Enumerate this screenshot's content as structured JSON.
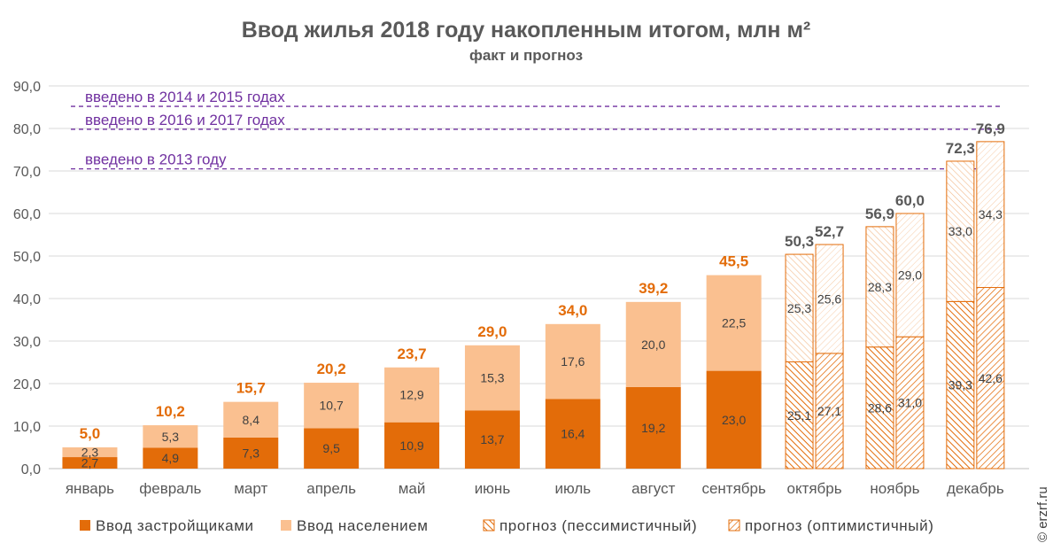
{
  "chart_data": {
    "type": "bar",
    "stacked": true,
    "title": "Ввод жилья 2018 году накопленным итогом, млн м²",
    "subtitle": "факт и прогноз",
    "categories": [
      "январь",
      "февраль",
      "март",
      "апрель",
      "май",
      "июнь",
      "июль",
      "август",
      "сентябрь",
      "октябрь",
      "ноябрь",
      "декабрь"
    ],
    "ylim": [
      0,
      90
    ],
    "yticks": [
      "0,0",
      "10,0",
      "20,0",
      "30,0",
      "40,0",
      "50,0",
      "60,0",
      "70,0",
      "80,0",
      "90,0"
    ],
    "grid": true,
    "actual": {
      "series": [
        {
          "name": "Ввод застройщиками",
          "color": "#e36c09",
          "values": [
            2.7,
            4.9,
            7.3,
            9.5,
            10.9,
            13.7,
            16.4,
            19.2,
            23.0
          ],
          "labels": [
            "2,7",
            "4,9",
            "7,3",
            "9,5",
            "10,9",
            "13,7",
            "16,4",
            "19,2",
            "23,0"
          ]
        },
        {
          "name": "Ввод населением",
          "color": "#fac090",
          "values": [
            2.3,
            5.3,
            8.4,
            10.7,
            12.9,
            15.3,
            17.6,
            20.0,
            22.5
          ],
          "labels": [
            "2,3",
            "5,3",
            "8,4",
            "10,7",
            "12,9",
            "15,3",
            "17,6",
            "20,0",
            "22,5"
          ]
        }
      ],
      "totals": [
        5.0,
        10.2,
        15.7,
        20.2,
        23.7,
        29.0,
        34.0,
        39.2,
        45.5
      ],
      "total_labels": [
        "5,0",
        "10,2",
        "15,7",
        "20,2",
        "23,7",
        "29,0",
        "34,0",
        "39,2",
        "45,5"
      ],
      "total_color": "#e36c09"
    },
    "forecast": [
      {
        "category": "октябрь",
        "pessimistic": {
          "bottom": 25.1,
          "top": 25.3,
          "total": 50.3,
          "bottom_label": "25,1",
          "top_label": "25,3",
          "total_label": "50,3"
        },
        "optimistic": {
          "bottom": 27.1,
          "top": 25.6,
          "total": 52.7,
          "bottom_label": "27,1",
          "top_label": "25,6",
          "total_label": "52,7"
        }
      },
      {
        "category": "ноябрь",
        "pessimistic": {
          "bottom": 28.6,
          "top": 28.3,
          "total": 56.9,
          "bottom_label": "28,6",
          "top_label": "28,3",
          "total_label": "56,9"
        },
        "optimistic": {
          "bottom": 31.0,
          "top": 29.0,
          "total": 60.0,
          "bottom_label": "31,0",
          "top_label": "29,0",
          "total_label": "60,0"
        }
      },
      {
        "category": "декабрь",
        "pessimistic": {
          "bottom": 39.3,
          "top": 33.0,
          "total": 72.3,
          "bottom_label": "39,3",
          "top_label": "33,0",
          "total_label": "72,3"
        },
        "optimistic": {
          "bottom": 42.6,
          "top": 34.3,
          "total": 76.9,
          "bottom_label": "42,6",
          "top_label": "34,3",
          "total_label": "76,9"
        }
      }
    ],
    "forecast_color": "#e36c09",
    "forecast_total_color": "#595959",
    "reference_lines": [
      {
        "label": "введено в 2014 и 2015 годах",
        "value": 85.2
      },
      {
        "label": "введено в 2016 и 2017 годах",
        "value": 79.8
      },
      {
        "label": "введено в 2013 году",
        "value": 70.5
      }
    ],
    "reference_color": "#7030a0",
    "legend": [
      {
        "name": "Ввод застройщиками",
        "style": "solid-dark"
      },
      {
        "name": "Ввод населением",
        "style": "solid-light"
      },
      {
        "name": "прогноз (пессимистичный)",
        "style": "hatch-dense"
      },
      {
        "name": "прогноз (оптимистичный)",
        "style": "hatch-sparse"
      }
    ],
    "legend_placement": "bottom"
  },
  "copyright": "© erzrf.ru"
}
